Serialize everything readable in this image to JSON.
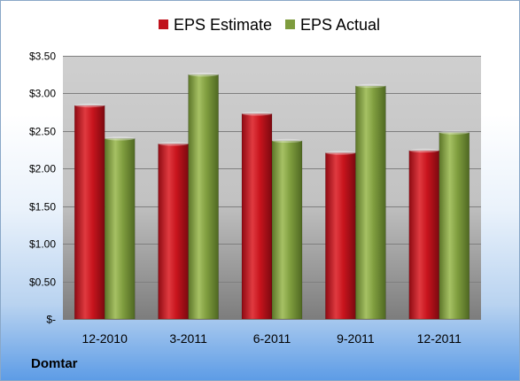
{
  "company": "Domtar",
  "chart_data": {
    "type": "bar",
    "categories": [
      "12-2010",
      "3-2011",
      "6-2011",
      "9-2011",
      "12-2011"
    ],
    "series": [
      {
        "name": "EPS Estimate",
        "color": "#c0121c",
        "values": [
          2.84,
          2.33,
          2.73,
          2.21,
          2.24
        ]
      },
      {
        "name": "EPS Actual",
        "color": "#7e9c3e",
        "values": [
          2.4,
          3.25,
          2.37,
          3.1,
          2.48
        ]
      }
    ],
    "ylim": [
      0,
      3.5
    ],
    "yticks": [
      0,
      0.5,
      1,
      1.5,
      2,
      2.5,
      3,
      3.5
    ],
    "ytick_labels": [
      "$-",
      "$0.50",
      "$1.00",
      "$1.50",
      "$2.00",
      "$2.50",
      "$3.00",
      "$3.50"
    ],
    "grid": true,
    "legend": "top"
  }
}
